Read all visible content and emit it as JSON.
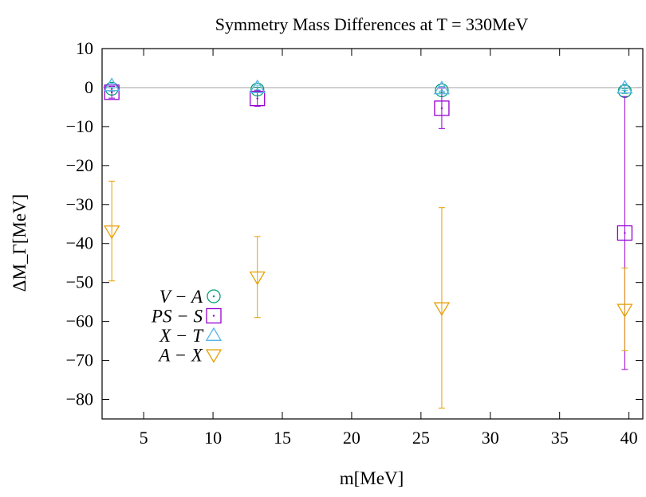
{
  "chart_data": {
    "type": "scatter",
    "title": "Symmetry Mass Differences at T = 330MeV",
    "xlabel": "m[MeV]",
    "ylabel": "ΔM_Γ[MeV]",
    "xlim": [
      2,
      41
    ],
    "ylim": [
      -85,
      10
    ],
    "xticks": [
      5,
      10,
      15,
      20,
      25,
      30,
      35,
      40
    ],
    "yticks": [
      10,
      0,
      -10,
      -20,
      -30,
      -40,
      -50,
      -60,
      -70,
      -80
    ],
    "zero_line": true,
    "grid": false,
    "legend_position": "bottom-left",
    "series": [
      {
        "name": "V − A",
        "marker": "circle",
        "color": "#009e73",
        "points": [
          {
            "x": 2.7,
            "y": -0.3,
            "err": 0.6
          },
          {
            "x": 13.2,
            "y": -0.5,
            "err": 0.6
          },
          {
            "x": 26.5,
            "y": -0.7,
            "err": 0.6
          },
          {
            "x": 39.7,
            "y": -0.9,
            "err": 0.6
          }
        ]
      },
      {
        "name": "PS − S",
        "marker": "square",
        "color": "#9400d3",
        "points": [
          {
            "x": 2.7,
            "y": -1.2,
            "err": 1.5
          },
          {
            "x": 13.2,
            "y": -2.8,
            "err": 2.0
          },
          {
            "x": 26.5,
            "y": -5.3,
            "err": 5.2
          },
          {
            "x": 39.7,
            "y": -37.3,
            "err": 35.0
          }
        ]
      },
      {
        "name": "X − T",
        "marker": "triangle-up",
        "color": "#56b4e9",
        "points": [
          {
            "x": 2.7,
            "y": 0.5,
            "err": 0.6
          },
          {
            "x": 13.2,
            "y": 0.0,
            "err": 0.6
          },
          {
            "x": 26.5,
            "y": -0.3,
            "err": 0.6
          },
          {
            "x": 39.7,
            "y": -0.1,
            "err": 0.6
          }
        ]
      },
      {
        "name": "A − X",
        "marker": "triangle-down",
        "color": "#e69f00",
        "points": [
          {
            "x": 2.7,
            "y": -36.8,
            "err": 12.8
          },
          {
            "x": 13.2,
            "y": -48.6,
            "err": 10.4
          },
          {
            "x": 26.5,
            "y": -56.5,
            "err": 25.7
          },
          {
            "x": 39.7,
            "y": -56.9,
            "err": 10.6
          }
        ]
      }
    ]
  }
}
